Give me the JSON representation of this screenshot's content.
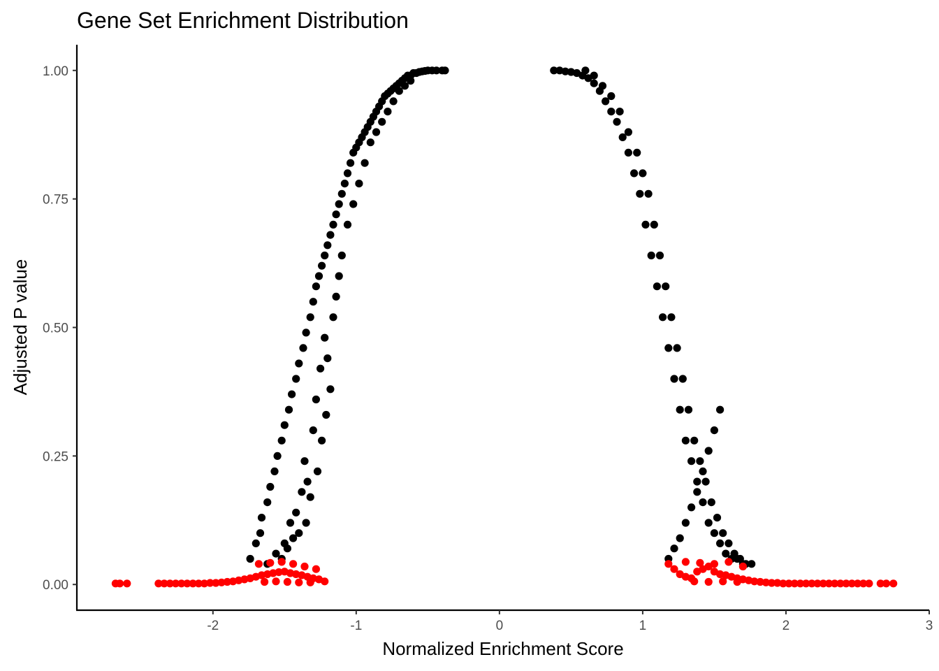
{
  "chart_data": {
    "type": "scatter",
    "title": "Gene Set Enrichment Distribution",
    "xlabel": "Normalized Enrichment Score",
    "ylabel": "Adjusted P value",
    "xlim": [
      -2.95,
      3.0
    ],
    "ylim": [
      -0.05,
      1.05
    ],
    "x_ticks": [
      -2,
      -1,
      0,
      1,
      2,
      3
    ],
    "x_tick_labels": [
      "-2",
      "-1",
      "0",
      "1",
      "2",
      "3"
    ],
    "y_ticks": [
      0.0,
      0.25,
      0.5,
      0.75,
      1.0
    ],
    "y_tick_labels": [
      "0.00",
      "0.25",
      "0.50",
      "0.75",
      "1.00"
    ],
    "grid": false,
    "legend": "none",
    "colors": {
      "significant": "#ff0000",
      "not_significant": "#000000"
    },
    "series": [
      {
        "color": "#000000",
        "x": [
          -1.74,
          -1.7,
          -1.67,
          -1.66,
          -1.62,
          -1.6,
          -1.57,
          -1.55,
          -1.52,
          -1.5,
          -1.47,
          -1.45,
          -1.42,
          -1.4,
          -1.37,
          -1.35,
          -1.32,
          -1.3,
          -1.28,
          -1.26,
          -1.24,
          -1.22,
          -1.2,
          -1.18,
          -1.16,
          -1.14,
          -1.12,
          -1.1,
          -1.08,
          -1.06,
          -1.04,
          -1.02,
          -1.0,
          -0.98,
          -0.96,
          -0.94,
          -0.92,
          -0.9,
          -0.88,
          -0.86,
          -0.84,
          -0.82,
          -0.8,
          -0.78,
          -0.76,
          -0.74,
          -0.72,
          -0.7,
          -0.68,
          -0.66,
          -0.64,
          -0.62,
          -0.6,
          -0.58,
          -0.56,
          -0.54,
          -0.52,
          -0.5,
          -0.47,
          -0.44,
          -0.4,
          -0.38,
          -1.62,
          -1.56,
          -1.5,
          -1.46,
          -1.42,
          -1.38,
          -1.36,
          -1.34,
          -1.3,
          -1.28,
          -1.25,
          -1.22,
          -1.2,
          -1.16,
          -1.14,
          -1.12,
          -1.1,
          -1.06,
          -1.02,
          -0.98,
          -0.94,
          -0.9,
          -0.86,
          -0.82,
          -0.78,
          -0.74,
          -0.7,
          -0.66,
          -0.62,
          -1.52,
          -1.48,
          -1.44,
          -1.4,
          -1.35,
          -1.32,
          -1.27,
          -1.24,
          -1.21,
          -1.18,
          0.38,
          0.42,
          0.46,
          0.5,
          0.54,
          0.58,
          0.62,
          0.66,
          0.7,
          0.74,
          0.78,
          0.82,
          0.86,
          0.9,
          0.94,
          0.98,
          1.02,
          1.06,
          1.1,
          1.14,
          1.18,
          1.22,
          1.26,
          1.3,
          1.34,
          1.38,
          1.42,
          1.46,
          1.5,
          1.54,
          1.58,
          1.62,
          1.66,
          1.7,
          0.6,
          0.66,
          0.72,
          0.78,
          0.84,
          0.9,
          0.96,
          1.0,
          1.04,
          1.08,
          1.12,
          1.16,
          1.2,
          1.24,
          1.28,
          1.32,
          1.36,
          1.4,
          1.44,
          1.48,
          1.52,
          1.56,
          1.6,
          1.64,
          1.68,
          1.72,
          1.76,
          1.18,
          1.22,
          1.26,
          1.3,
          1.34,
          1.38,
          1.42,
          1.46,
          1.5,
          1.54
        ],
        "y": [
          0.05,
          0.08,
          0.1,
          0.13,
          0.16,
          0.19,
          0.22,
          0.25,
          0.28,
          0.31,
          0.34,
          0.37,
          0.4,
          0.43,
          0.46,
          0.49,
          0.52,
          0.55,
          0.58,
          0.6,
          0.62,
          0.64,
          0.66,
          0.68,
          0.7,
          0.72,
          0.74,
          0.76,
          0.78,
          0.8,
          0.82,
          0.84,
          0.85,
          0.86,
          0.87,
          0.88,
          0.89,
          0.9,
          0.91,
          0.92,
          0.93,
          0.94,
          0.95,
          0.955,
          0.96,
          0.965,
          0.97,
          0.975,
          0.98,
          0.985,
          0.99,
          0.99,
          0.995,
          0.995,
          0.997,
          0.998,
          0.999,
          1.0,
          1.0,
          1.0,
          1.0,
          1.0,
          0.04,
          0.06,
          0.08,
          0.12,
          0.14,
          0.18,
          0.24,
          0.2,
          0.3,
          0.36,
          0.42,
          0.48,
          0.44,
          0.52,
          0.56,
          0.6,
          0.64,
          0.7,
          0.74,
          0.78,
          0.82,
          0.86,
          0.88,
          0.9,
          0.92,
          0.94,
          0.96,
          0.97,
          0.98,
          0.05,
          0.07,
          0.09,
          0.1,
          0.12,
          0.17,
          0.22,
          0.28,
          0.33,
          0.38,
          1.0,
          1.0,
          0.998,
          0.997,
          0.995,
          0.99,
          0.985,
          0.975,
          0.96,
          0.94,
          0.92,
          0.9,
          0.87,
          0.84,
          0.8,
          0.76,
          0.7,
          0.64,
          0.58,
          0.52,
          0.46,
          0.4,
          0.34,
          0.28,
          0.24,
          0.2,
          0.16,
          0.12,
          0.1,
          0.08,
          0.06,
          0.05,
          0.05,
          0.04,
          1.0,
          0.99,
          0.97,
          0.95,
          0.92,
          0.88,
          0.84,
          0.8,
          0.76,
          0.7,
          0.64,
          0.58,
          0.52,
          0.46,
          0.4,
          0.34,
          0.28,
          0.24,
          0.2,
          0.16,
          0.13,
          0.1,
          0.08,
          0.06,
          0.05,
          0.04,
          0.04,
          0.05,
          0.07,
          0.09,
          0.12,
          0.15,
          0.18,
          0.22,
          0.26,
          0.3,
          0.34
        ]
      },
      {
        "color": "#ff0000",
        "x": [
          -2.68,
          -2.65,
          -2.6,
          -2.38,
          -2.34,
          -2.3,
          -2.26,
          -2.22,
          -2.18,
          -2.14,
          -2.1,
          -2.06,
          -2.02,
          -1.98,
          -1.94,
          -1.9,
          -1.86,
          -1.82,
          -1.78,
          -1.74,
          -1.7,
          -1.66,
          -1.62,
          -1.58,
          -1.54,
          -1.5,
          -1.46,
          -1.42,
          -1.38,
          -1.34,
          -1.3,
          -1.26,
          -1.22,
          -1.68,
          -1.6,
          -1.52,
          -1.44,
          -1.36,
          -1.28,
          -1.64,
          -1.56,
          -1.48,
          -1.4,
          -1.32,
          1.18,
          1.22,
          1.26,
          1.3,
          1.34,
          1.38,
          1.42,
          1.46,
          1.5,
          1.54,
          1.58,
          1.62,
          1.66,
          1.7,
          1.74,
          1.78,
          1.82,
          1.86,
          1.9,
          1.94,
          1.98,
          2.02,
          2.06,
          2.1,
          2.14,
          2.18,
          2.22,
          2.26,
          2.3,
          2.34,
          2.38,
          2.42,
          2.46,
          2.5,
          2.54,
          2.58,
          2.66,
          2.7,
          2.75,
          1.3,
          1.4,
          1.5,
          1.6,
          1.7,
          1.36,
          1.46,
          1.56,
          1.66
        ],
        "y": [
          0.002,
          0.002,
          0.002,
          0.002,
          0.002,
          0.002,
          0.002,
          0.002,
          0.002,
          0.002,
          0.002,
          0.002,
          0.003,
          0.003,
          0.004,
          0.005,
          0.006,
          0.008,
          0.01,
          0.012,
          0.015,
          0.018,
          0.02,
          0.022,
          0.024,
          0.025,
          0.022,
          0.02,
          0.018,
          0.015,
          0.012,
          0.01,
          0.006,
          0.04,
          0.042,
          0.044,
          0.04,
          0.035,
          0.03,
          0.005,
          0.006,
          0.005,
          0.004,
          0.004,
          0.04,
          0.03,
          0.02,
          0.015,
          0.012,
          0.025,
          0.03,
          0.035,
          0.025,
          0.02,
          0.018,
          0.015,
          0.012,
          0.01,
          0.008,
          0.006,
          0.005,
          0.004,
          0.003,
          0.003,
          0.002,
          0.002,
          0.002,
          0.002,
          0.002,
          0.002,
          0.002,
          0.002,
          0.002,
          0.002,
          0.002,
          0.002,
          0.002,
          0.002,
          0.002,
          0.002,
          0.002,
          0.002,
          0.002,
          0.044,
          0.042,
          0.04,
          0.044,
          0.035,
          0.006,
          0.005,
          0.006,
          0.005
        ]
      }
    ]
  }
}
